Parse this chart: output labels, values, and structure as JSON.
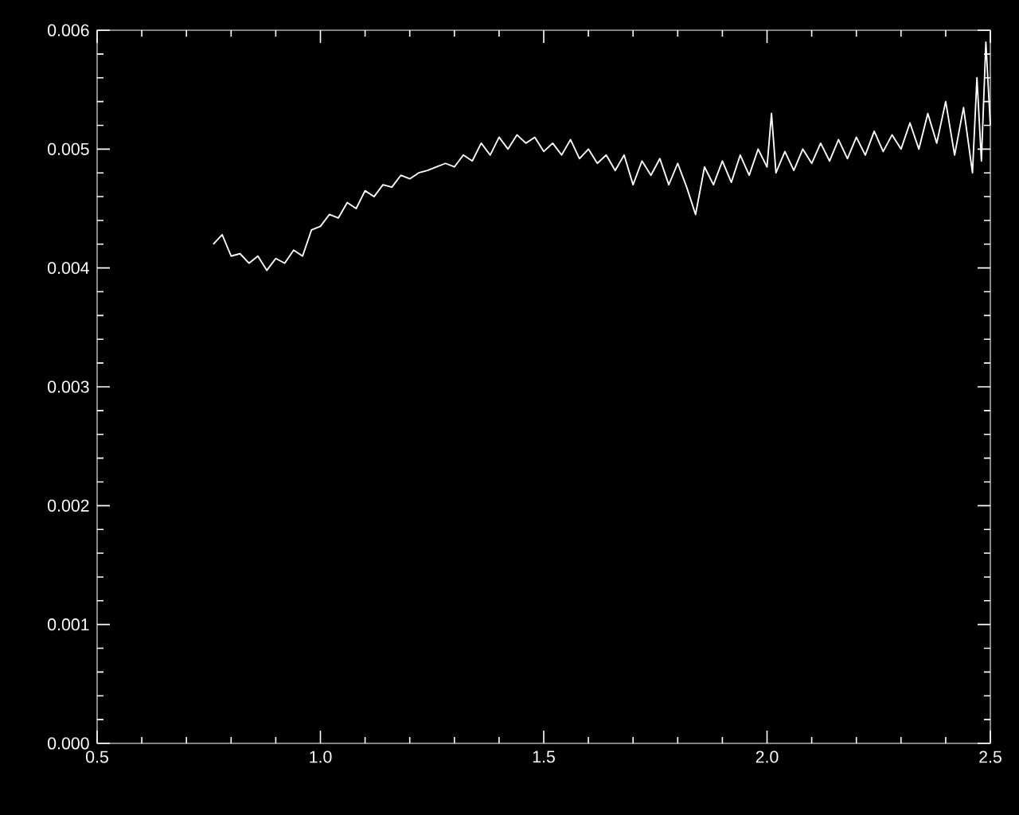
{
  "chart_data": {
    "type": "line",
    "x": [
      0.76,
      0.78,
      0.8,
      0.82,
      0.84,
      0.86,
      0.88,
      0.9,
      0.92,
      0.94,
      0.96,
      0.98,
      1.0,
      1.02,
      1.04,
      1.06,
      1.08,
      1.1,
      1.12,
      1.14,
      1.16,
      1.18,
      1.2,
      1.22,
      1.24,
      1.26,
      1.28,
      1.3,
      1.32,
      1.34,
      1.36,
      1.38,
      1.4,
      1.42,
      1.44,
      1.46,
      1.48,
      1.5,
      1.52,
      1.54,
      1.56,
      1.58,
      1.6,
      1.62,
      1.64,
      1.66,
      1.68,
      1.7,
      1.72,
      1.74,
      1.76,
      1.78,
      1.8,
      1.82,
      1.84,
      1.86,
      1.88,
      1.9,
      1.92,
      1.94,
      1.96,
      1.98,
      2.0,
      2.01,
      2.02,
      2.04,
      2.06,
      2.08,
      2.1,
      2.12,
      2.14,
      2.16,
      2.18,
      2.2,
      2.22,
      2.24,
      2.26,
      2.28,
      2.3,
      2.32,
      2.34,
      2.36,
      2.38,
      2.4,
      2.42,
      2.44,
      2.46,
      2.47,
      2.48,
      2.49,
      2.5
    ],
    "series": [
      {
        "color": "#ffffff",
        "values": [
          0.0042,
          0.00428,
          0.0041,
          0.00412,
          0.00404,
          0.0041,
          0.00398,
          0.00408,
          0.00404,
          0.00415,
          0.0041,
          0.00432,
          0.00435,
          0.00445,
          0.00442,
          0.00455,
          0.0045,
          0.00465,
          0.0046,
          0.0047,
          0.00468,
          0.00478,
          0.00475,
          0.0048,
          0.00482,
          0.00485,
          0.00488,
          0.00485,
          0.00495,
          0.0049,
          0.00505,
          0.00495,
          0.0051,
          0.005,
          0.00512,
          0.00505,
          0.0051,
          0.00498,
          0.00505,
          0.00495,
          0.00508,
          0.00492,
          0.005,
          0.00488,
          0.00495,
          0.00482,
          0.00495,
          0.0047,
          0.0049,
          0.00478,
          0.00492,
          0.0047,
          0.00488,
          0.00468,
          0.00445,
          0.00485,
          0.0047,
          0.0049,
          0.00472,
          0.00495,
          0.00478,
          0.005,
          0.00485,
          0.0053,
          0.0048,
          0.00498,
          0.00482,
          0.005,
          0.00488,
          0.00505,
          0.0049,
          0.00508,
          0.00492,
          0.0051,
          0.00495,
          0.00515,
          0.00498,
          0.00512,
          0.005,
          0.00522,
          0.005,
          0.0053,
          0.00505,
          0.0054,
          0.00495,
          0.00535,
          0.0048,
          0.0056,
          0.0049,
          0.0059,
          0.0052
        ]
      }
    ],
    "xlim": [
      0.5,
      2.5
    ],
    "xticks": [
      {
        "value": 0.5,
        "label": "0.5"
      },
      {
        "value": 1.0,
        "label": "1.0"
      },
      {
        "value": 1.5,
        "label": "1.5"
      },
      {
        "value": 2.0,
        "label": "2.0"
      },
      {
        "value": 2.5,
        "label": "2.5"
      }
    ],
    "ylim": [
      0,
      0.006
    ],
    "yticks": [
      {
        "value": 0,
        "label": "0.000"
      },
      {
        "value": 0.001,
        "label": "0.001"
      },
      {
        "value": 0.002,
        "label": "0.002"
      },
      {
        "value": 0.003,
        "label": "0.003"
      },
      {
        "value": 0.004,
        "label": "0.004"
      },
      {
        "value": 0.005,
        "label": "0.005"
      },
      {
        "value": 0.006,
        "label": "0.006"
      }
    ],
    "marker": "none",
    "line_style": "solid",
    "grid": false
  }
}
